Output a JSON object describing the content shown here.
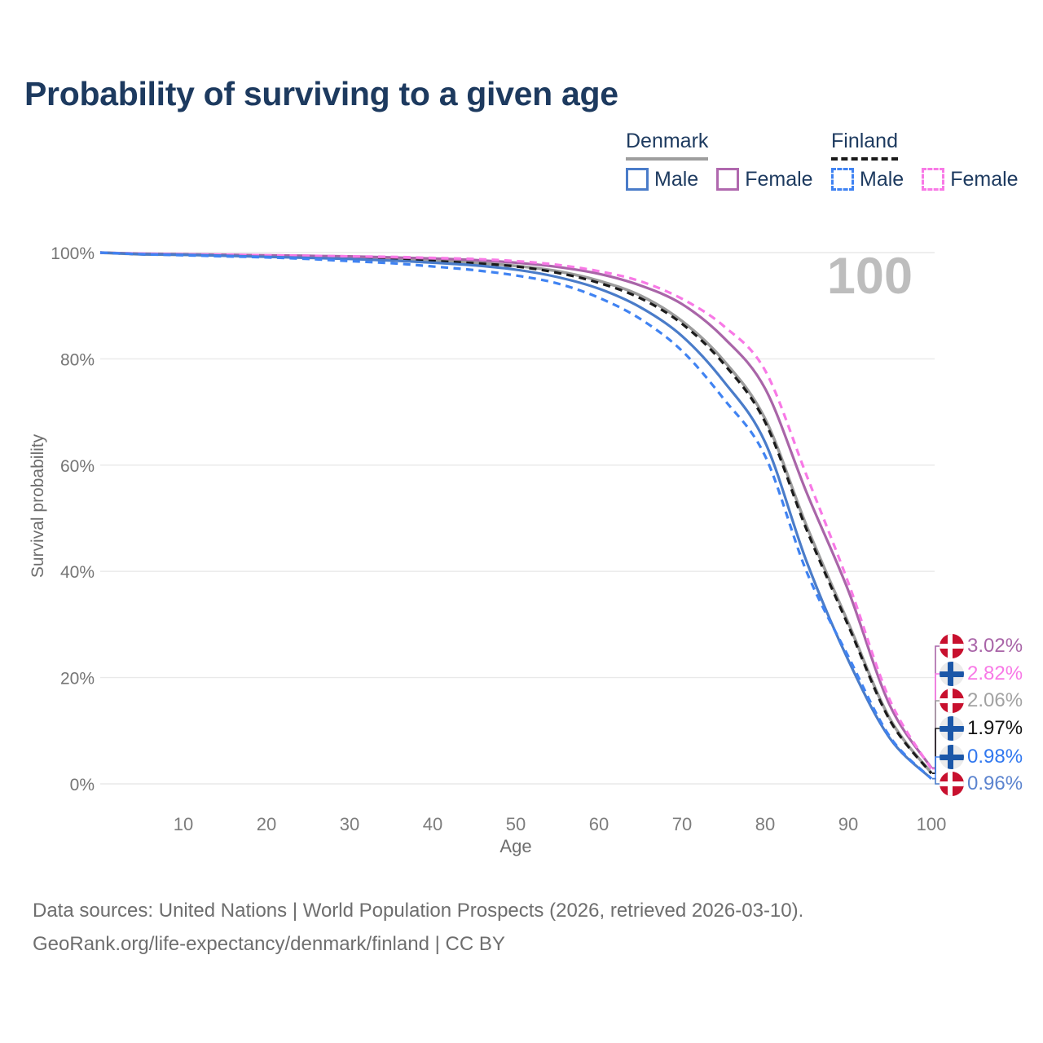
{
  "page": {
    "title": "Probability of surviving to a given age",
    "watermark_age": "100"
  },
  "legend": {
    "denmark": {
      "label": "Denmark",
      "male_label": "Male",
      "female_label": "Female"
    },
    "finland": {
      "label": "Finland",
      "male_label": "Male",
      "female_label": "Female"
    }
  },
  "chart_data": {
    "type": "line",
    "title": "Probability of surviving to a given age",
    "xlabel": "Age",
    "ylabel": "Survival probability",
    "xlim": [
      0,
      100
    ],
    "ylim": [
      0,
      100
    ],
    "x_ticks": [
      10,
      20,
      30,
      40,
      50,
      60,
      70,
      80,
      90,
      100
    ],
    "y_ticks": [
      0,
      20,
      40,
      60,
      80,
      100
    ],
    "y_tick_suffix": "%",
    "grid": true,
    "legend_position": "top-right",
    "ages": [
      0,
      5,
      10,
      15,
      20,
      25,
      30,
      35,
      40,
      45,
      50,
      55,
      60,
      65,
      70,
      75,
      80,
      85,
      90,
      95,
      100
    ],
    "series": [
      {
        "id": "denmark-female",
        "country": "Denmark",
        "sex": "Female",
        "style": "solid",
        "color": "#a965a8",
        "label_color": "#a965a8",
        "end_label": "3.02%",
        "end_value": 3.02,
        "flag": "denmark",
        "values": [
          100,
          99.8,
          99.7,
          99.6,
          99.5,
          99.4,
          99.3,
          99.1,
          98.9,
          98.6,
          98.1,
          97.3,
          96.0,
          93.8,
          90.3,
          84.0,
          74.4,
          54.8,
          36.4,
          14.8,
          3.02
        ]
      },
      {
        "id": "finland-female",
        "country": "Finland",
        "sex": "Female",
        "style": "dashed",
        "color": "#f879e6",
        "label_color": "#f879e6",
        "end_label": "2.82%",
        "end_value": 2.82,
        "flag": "finland",
        "values": [
          100,
          99.8,
          99.7,
          99.6,
          99.5,
          99.4,
          99.3,
          99.2,
          99.0,
          98.8,
          98.4,
          97.7,
          96.5,
          94.6,
          91.3,
          86.2,
          77.8,
          58.0,
          37.9,
          15.8,
          2.82
        ]
      },
      {
        "id": "denmark-total",
        "country": "Denmark",
        "sex": "Both",
        "style": "solid",
        "color": "#9c9c9c",
        "label_color": "#a2a2a2",
        "end_label": "2.06%",
        "end_value": 2.06,
        "flag": "denmark",
        "values": [
          100,
          99.7,
          99.6,
          99.5,
          99.4,
          99.2,
          99.0,
          98.8,
          98.5,
          98.1,
          97.5,
          96.5,
          94.7,
          91.9,
          87.1,
          79.7,
          68.7,
          48.5,
          30.3,
          12.3,
          2.06
        ]
      },
      {
        "id": "finland-total",
        "country": "Finland",
        "sex": "Both",
        "style": "dashed",
        "color": "#1b1b1b",
        "label_color": "#141414",
        "end_label": "1.97%",
        "end_value": 1.97,
        "flag": "finland",
        "values": [
          100,
          99.7,
          99.6,
          99.5,
          99.4,
          99.2,
          99.0,
          98.7,
          98.4,
          98.0,
          97.4,
          96.2,
          94.3,
          91.4,
          86.6,
          79.1,
          68.1,
          47.8,
          29.8,
          12.0,
          1.97
        ]
      },
      {
        "id": "finland-male",
        "country": "Finland",
        "sex": "Male",
        "style": "dashed",
        "color": "#4083f2",
        "label_color": "#3178ef",
        "end_label": "0.98%",
        "end_value": 0.98,
        "flag": "finland",
        "values": [
          100,
          99.7,
          99.5,
          99.3,
          99.1,
          98.8,
          98.4,
          98.0,
          97.4,
          96.7,
          95.7,
          94.2,
          91.5,
          87.5,
          81.5,
          72.5,
          61.7,
          39.9,
          24.0,
          8.9,
          0.98
        ]
      },
      {
        "id": "denmark-male",
        "country": "Denmark",
        "sex": "Male",
        "style": "solid",
        "color": "#4a7cc9",
        "label_color": "#5c84cf",
        "end_label": "0.96%",
        "end_value": 0.96,
        "flag": "denmark",
        "values": [
          100,
          99.7,
          99.6,
          99.4,
          99.2,
          99.0,
          98.8,
          98.5,
          98.1,
          97.6,
          96.8,
          95.4,
          93.2,
          89.7,
          84.3,
          75.8,
          64.3,
          41.8,
          23.3,
          8.6,
          0.96
        ]
      }
    ]
  },
  "flag_colors": {
    "denmark_red": "#c8102e",
    "denmark_cross": "#ffffff",
    "finland_bg": "#ebebeb",
    "finland_blue": "#1b57a8"
  },
  "footer": {
    "line1": "Data sources: United Nations | World Population Prospects (2026, retrieved 2026-03-10).",
    "line2": "GeoRank.org/life-expectancy/denmark/finland | CC BY"
  }
}
